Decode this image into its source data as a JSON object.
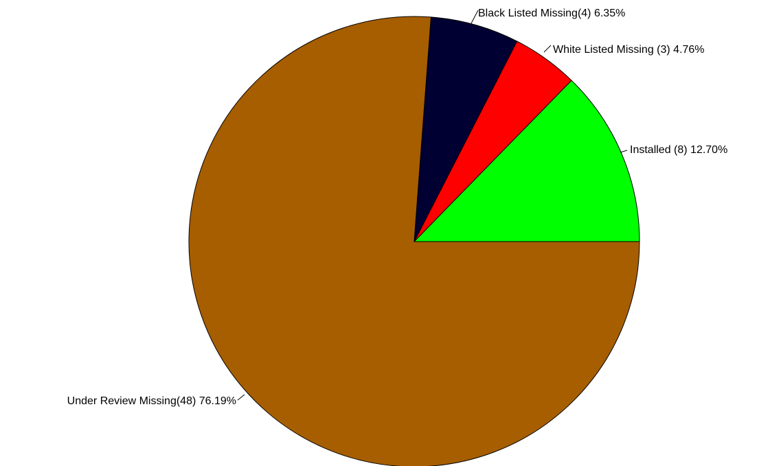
{
  "chart_data": {
    "type": "pie",
    "title": "",
    "start_angle_deg": 0,
    "direction": "counterclockwise",
    "slices": [
      {
        "name": "Installed",
        "count": 8,
        "percent": 12.7,
        "color": "#00ff00",
        "label": "Installed (8) 12.70%"
      },
      {
        "name": "White Listed Missing",
        "count": 3,
        "percent": 4.76,
        "color": "#ff0000",
        "label": "White Listed Missing (3) 4.76%"
      },
      {
        "name": "Black Listed Missing",
        "count": 4,
        "percent": 6.35,
        "color": "#000033",
        "label": "Black Listed Missing(4) 6.35%"
      },
      {
        "name": "Under Review Missing",
        "count": 48,
        "percent": 76.19,
        "color": "#a65e00",
        "label": "Under Review Missing(48) 76.19%"
      }
    ]
  }
}
